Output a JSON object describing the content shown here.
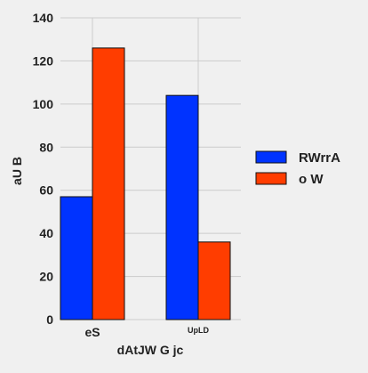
{
  "chart_data": {
    "type": "bar",
    "title": "",
    "xlabel": "dAtJW G  jc",
    "ylabel": "aU B",
    "categories": [
      "eS",
      "UpLD"
    ],
    "series": [
      {
        "name": "RWrrA",
        "values": [
          57,
          104
        ],
        "color": "#0033ff"
      },
      {
        "name": "o W",
        "values": [
          126,
          36
        ],
        "color": "#ff3d00"
      }
    ],
    "ylim": [
      0,
      140
    ],
    "yticks": [
      "0",
      "20",
      "40",
      "60",
      "80",
      "100",
      "120",
      "140"
    ],
    "grid": true,
    "legend_position": "right"
  },
  "colors": {
    "background": "#f0f0f0",
    "grid": "#cbcbcb",
    "text": "#222222"
  }
}
